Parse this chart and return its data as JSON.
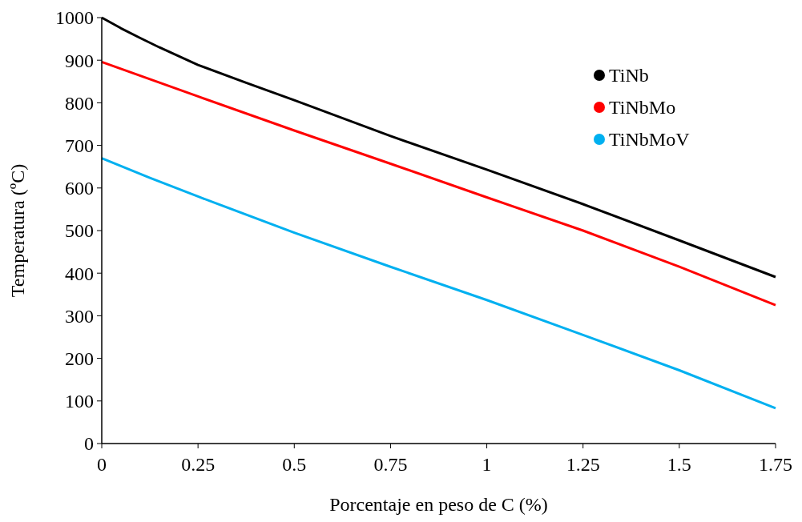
{
  "chart_data": {
    "type": "line",
    "xlabel": "Porcentaje en peso de C (%)",
    "ylabel": "Temperatura (ºC)",
    "xlim": [
      0,
      1.75
    ],
    "xticks": [
      0,
      0.25,
      0.5,
      0.75,
      1,
      1.25,
      1.5,
      1.75
    ],
    "ylim": [
      0,
      1000
    ],
    "yticks": [
      0,
      100,
      200,
      300,
      400,
      500,
      600,
      700,
      800,
      900,
      1000
    ],
    "grid": false,
    "legend": "top right",
    "line_style": "solid",
    "series": [
      {
        "name": "TiNb",
        "color": "#000000",
        "x": [
          0,
          0.05,
          0.1,
          0.15,
          0.25,
          0.375,
          0.5,
          0.75,
          1,
          1.25,
          1.5,
          1.75
        ],
        "values": [
          1000,
          975,
          952,
          930,
          889,
          847,
          806,
          722,
          643,
          562,
          477,
          391
        ]
      },
      {
        "name": "TiNbMo",
        "color": "#ff0000",
        "x": [
          0,
          0.25,
          0.5,
          0.75,
          1,
          1.25,
          1.5,
          1.75
        ],
        "values": [
          896,
          815,
          735,
          657,
          578,
          500,
          415,
          325
        ]
      },
      {
        "name": "TiNbMoV",
        "color": "#00b0f0",
        "x": [
          0,
          0.125,
          0.25,
          0.5,
          0.75,
          1,
          1.25,
          1.5,
          1.75
        ],
        "values": [
          670,
          624,
          580,
          495,
          415,
          337,
          255,
          172,
          83
        ]
      }
    ]
  }
}
